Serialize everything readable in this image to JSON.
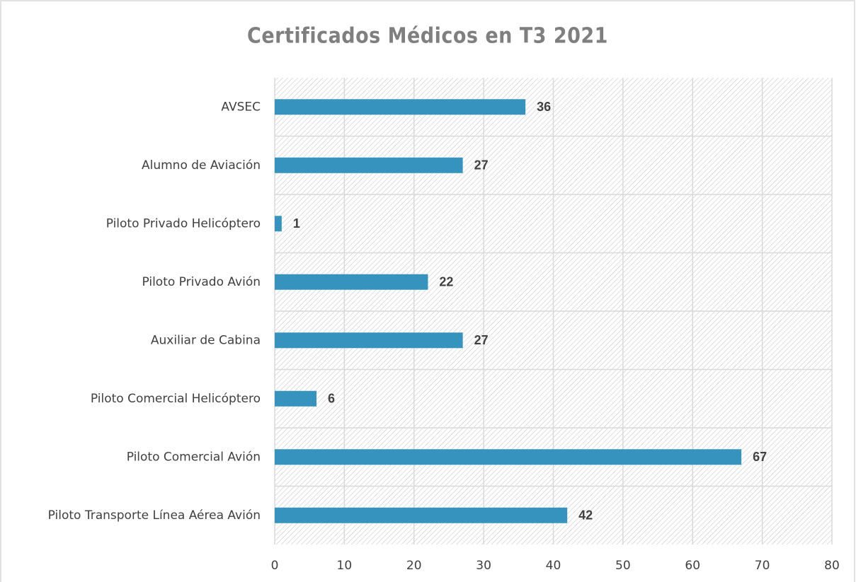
{
  "chart_data": {
    "type": "bar",
    "orientation": "horizontal",
    "title": "Certificados Médicos en T3 2021",
    "categories": [
      "AVSEC",
      "Alumno de Aviación",
      "Piloto Privado Helicóptero",
      "Piloto Privado Avión",
      "Auxiliar de Cabina",
      "Piloto Comercial Helicóptero",
      "Piloto Comercial Avión",
      "Piloto Transporte Línea Aérea Avión"
    ],
    "values": [
      36,
      27,
      1,
      22,
      27,
      6,
      67,
      42
    ],
    "color": "#3593bd",
    "xlim": [
      0,
      80
    ],
    "xticks": [
      0,
      10,
      20,
      30,
      40,
      50,
      60,
      70,
      80
    ],
    "grid": true
  }
}
